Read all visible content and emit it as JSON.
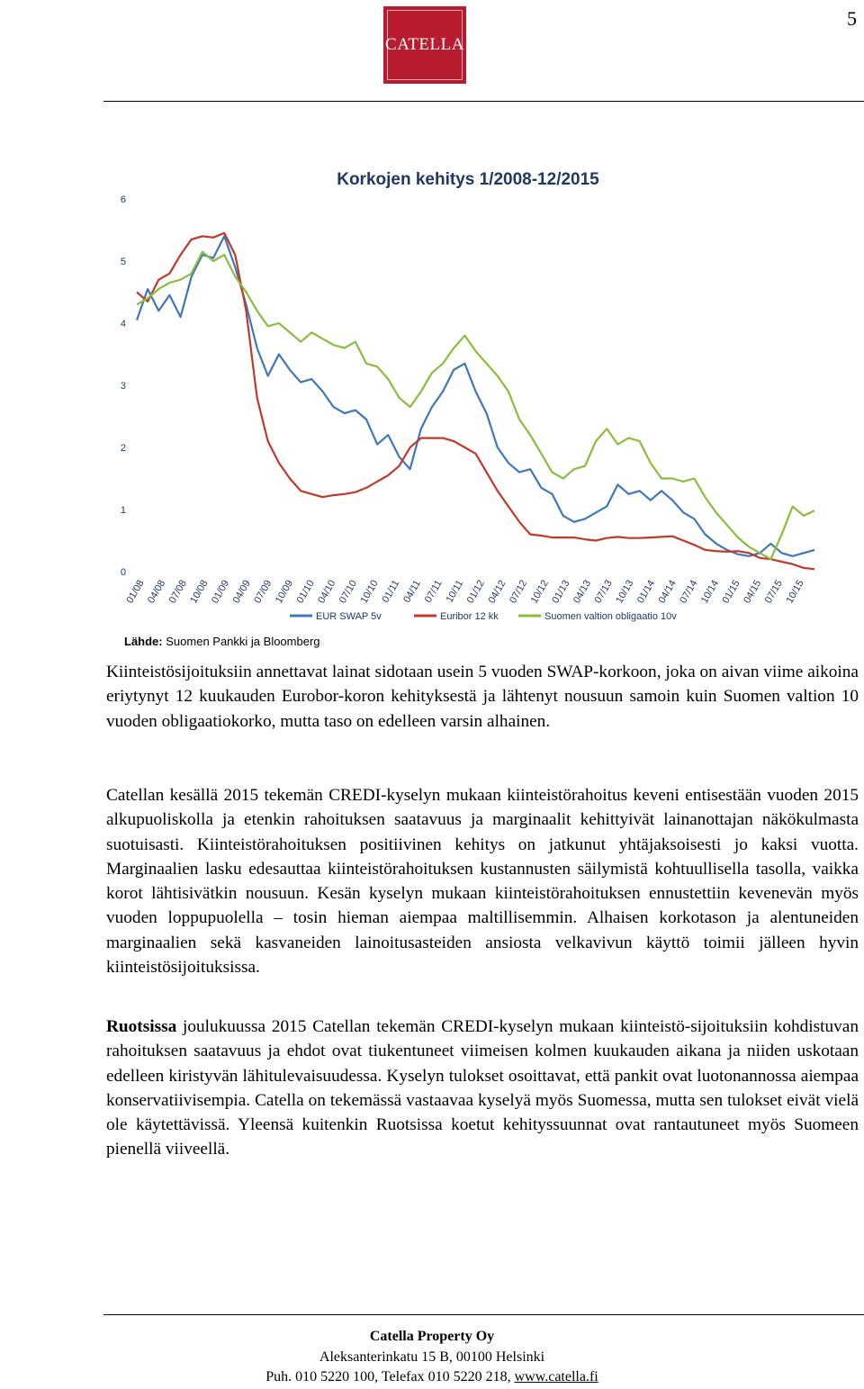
{
  "page_number": "5",
  "logo_text": "CATELLA",
  "source_label": "Lähde:",
  "source_text": "Suomen Pankki ja Bloomberg",
  "chart_data": {
    "type": "line",
    "title": "Korkojen kehitys 1/2008-12/2015",
    "xlabel": "",
    "ylabel": "",
    "ylim": [
      0,
      6
    ],
    "yticks": [
      0,
      1,
      2,
      3,
      4,
      5,
      6
    ],
    "grid": false,
    "legend_position": "bottom",
    "x_tick_labels": [
      "01/08",
      "04/08",
      "07/08",
      "10/08",
      "01/09",
      "04/09",
      "07/09",
      "10/09",
      "01/10",
      "04/10",
      "07/10",
      "10/10",
      "01/11",
      "04/11",
      "07/11",
      "10/11",
      "01/12",
      "04/12",
      "07/12",
      "10/12",
      "01/13",
      "04/13",
      "07/13",
      "10/13",
      "01/14",
      "04/14",
      "07/14",
      "10/14",
      "01/15",
      "04/15",
      "07/15",
      "10/15"
    ],
    "series": [
      {
        "name": "EUR SWAP 5v",
        "color": "#3f77bd",
        "values": [
          4.05,
          4.55,
          4.2,
          4.45,
          4.1,
          4.75,
          5.1,
          5.05,
          5.4,
          4.9,
          4.3,
          3.6,
          3.15,
          3.5,
          3.25,
          3.05,
          3.1,
          2.9,
          2.65,
          2.55,
          2.6,
          2.45,
          2.05,
          2.2,
          1.85,
          1.65,
          2.3,
          2.65,
          2.9,
          3.25,
          3.35,
          2.9,
          2.55,
          2.0,
          1.75,
          1.6,
          1.65,
          1.35,
          1.25,
          0.9,
          0.8,
          0.85,
          0.95,
          1.05,
          1.4,
          1.25,
          1.3,
          1.15,
          1.3,
          1.15,
          0.95,
          0.85,
          0.6,
          0.45,
          0.35,
          0.28,
          0.25,
          0.3,
          0.45,
          0.3,
          0.25,
          0.3,
          0.35
        ]
      },
      {
        "name": "Euribor 12 kk",
        "color": "#c0392b",
        "values": [
          4.5,
          4.35,
          4.7,
          4.8,
          5.1,
          5.35,
          5.4,
          5.38,
          5.45,
          5.1,
          4.2,
          2.8,
          2.1,
          1.75,
          1.5,
          1.3,
          1.25,
          1.2,
          1.23,
          1.25,
          1.28,
          1.35,
          1.45,
          1.55,
          1.7,
          2.0,
          2.15,
          2.15,
          2.15,
          2.1,
          2.0,
          1.9,
          1.6,
          1.3,
          1.05,
          0.8,
          0.6,
          0.58,
          0.55,
          0.55,
          0.55,
          0.52,
          0.5,
          0.54,
          0.56,
          0.54,
          0.54,
          0.55,
          0.56,
          0.57,
          0.5,
          0.43,
          0.35,
          0.33,
          0.32,
          0.33,
          0.3,
          0.22,
          0.2,
          0.16,
          0.12,
          0.06,
          0.04
        ]
      },
      {
        "name": "Suomen valtion obligaatio 10v",
        "color": "#8cbc3b",
        "values": [
          4.3,
          4.4,
          4.55,
          4.65,
          4.7,
          4.8,
          5.15,
          5.0,
          5.1,
          4.75,
          4.5,
          4.2,
          3.95,
          4.0,
          3.85,
          3.7,
          3.85,
          3.75,
          3.65,
          3.6,
          3.7,
          3.35,
          3.3,
          3.1,
          2.8,
          2.65,
          2.9,
          3.2,
          3.35,
          3.6,
          3.8,
          3.55,
          3.35,
          3.15,
          2.9,
          2.45,
          2.2,
          1.9,
          1.6,
          1.5,
          1.65,
          1.7,
          2.1,
          2.3,
          2.05,
          2.15,
          2.1,
          1.75,
          1.5,
          1.5,
          1.45,
          1.5,
          1.2,
          0.95,
          0.75,
          0.55,
          0.4,
          0.3,
          0.2,
          0.6,
          1.05,
          0.9,
          0.98
        ]
      }
    ]
  },
  "paragraphs": {
    "p1": "Kiinteistösijoituksiin annettavat lainat sidotaan usein 5 vuoden SWAP-korkoon, joka on aivan viime aikoina eriytynyt 12 kuukauden Eurobor-koron kehityksestä ja lähtenyt nousuun samoin kuin Suomen valtion 10 vuoden obligaatiokorko, mutta taso on edelleen varsin alhainen.",
    "p2": "Catellan kesällä 2015 tekemän CREDI-kyselyn mukaan kiinteistörahoitus keveni entisestään vuoden 2015 alkupuoliskolla ja etenkin rahoituksen saatavuus ja marginaalit kehittyivät lainanottajan näkökulmasta suotuisasti. Kiinteistörahoituksen positiivinen kehitys on jatkunut yhtäjaksoisesti jo kaksi vuotta. Marginaalien lasku edesauttaa kiinteistörahoituksen kustannusten säilymistä kohtuullisella tasolla, vaikka korot lähtisivätkin nousuun. Kesän kyselyn mukaan kiinteistörahoituksen ennustettiin kevenevän myös vuoden loppupuolella – tosin hieman aiempaa maltillisemmin. Alhaisen korkotason ja alentuneiden marginaalien sekä kasvaneiden lainoitusasteiden ansiosta velkavivun käyttö toimii jälleen hyvin kiinteistösijoituksissa.",
    "p3_bold": "Ruotsissa",
    "p3_rest": " joulukuussa 2015 Catellan tekemän CREDI-kyselyn mukaan kiinteistö-sijoituksiin kohdistuvan rahoituksen saatavuus ja ehdot ovat tiukentuneet viimeisen kolmen kuukauden aikana ja niiden uskotaan edelleen kiristyvän lähitulevaisuudessa. Kyselyn tulokset osoittavat, että pankit ovat luotonannossa aiempaa konservatiivisempia. Catella on tekemässä vastaavaa kyselyä myös Suomessa, mutta sen tulokset eivät vielä ole käytettävissä. Yleensä kuitenkin Ruotsissa koetut kehityssuunnat ovat rantautuneet myös Suomeen pienellä viiveellä."
  },
  "footer": {
    "company": "Catella Property Oy",
    "address": "Aleksanterinkatu 15 B, 00100 Helsinki",
    "phone": "Puh. 010 5220 100, Telefax 010 5220 218, ",
    "url": "www.catella.fi"
  }
}
